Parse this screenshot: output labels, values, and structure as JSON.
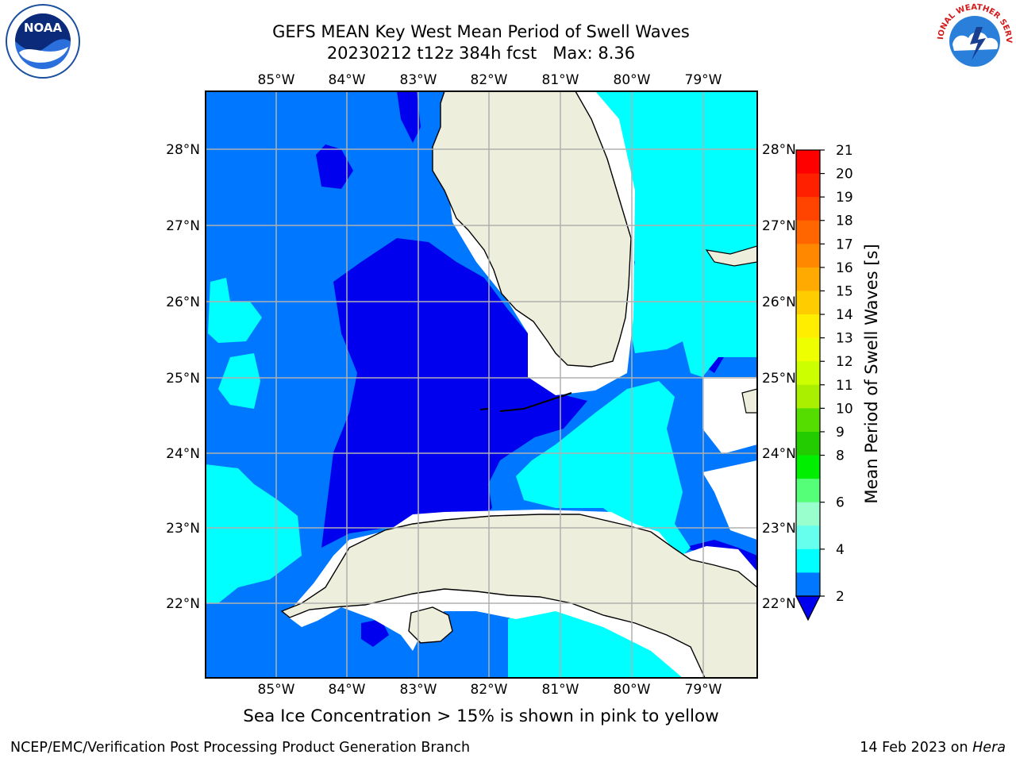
{
  "title": {
    "line1": "GEFS MEAN Key West Mean Period of Swell Waves",
    "line2": "20230212 t12z 384h fcst   Max: 8.36"
  },
  "logos": {
    "left": {
      "name": "noaa-logo",
      "text": "NOAA"
    },
    "right": {
      "name": "nws-logo",
      "text": "NATIONAL WEATHER SERVICE"
    }
  },
  "map": {
    "lon_labels": [
      "85°W",
      "84°W",
      "83°W",
      "82°W",
      "81°W",
      "80°W",
      "79°W"
    ],
    "lat_labels": [
      "28°N",
      "27°N",
      "26°N",
      "25°N",
      "24°N",
      "23°N",
      "22°N"
    ],
    "ocean_colors": {
      "2-4": "#0077ff",
      "4-6": "#00ffff",
      "under-2": "#0000ee",
      "land": "#eeeedd",
      "no-data": "#ffffff"
    },
    "grid_color": "#b0b0b0"
  },
  "colorbar": {
    "label": "Mean Period of Swell Waves [s]",
    "ticks": [
      "21",
      "20",
      "19",
      "18",
      "17",
      "16",
      "15",
      "14",
      "13",
      "12",
      "11",
      "10",
      "9",
      "8",
      "6",
      "4",
      "2"
    ],
    "colors": [
      "#ff0000",
      "#ff2000",
      "#ff4400",
      "#ff6600",
      "#ff8800",
      "#ffaa00",
      "#ffcc00",
      "#ffee00",
      "#eeff00",
      "#ccff00",
      "#aaee00",
      "#55dd00",
      "#22cc00",
      "#00ee00",
      "#55ff77",
      "#99ffcc",
      "#66ffee",
      "#00ffff",
      "#0077ff"
    ],
    "under_color": "#0000ee"
  },
  "footer": {
    "note": "Sea Ice Concentration > 15% is shown in pink to yellow",
    "credit": "NCEP/EMC/Verification Post Processing Product Generation Branch",
    "date": "14 Feb 2023 on ",
    "host": "Hera"
  }
}
